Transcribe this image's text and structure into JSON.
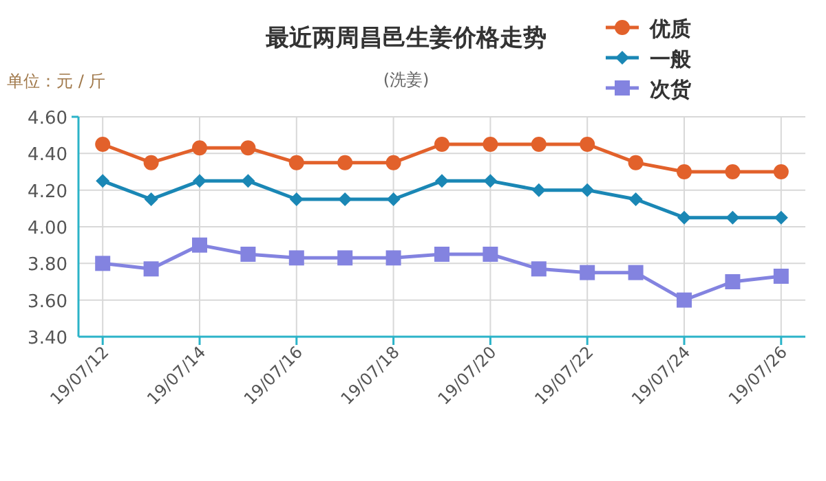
{
  "chart_data": {
    "type": "line",
    "title": "最近两周昌邑生姜价格走势",
    "subtitle": "(洗姜)",
    "ylabel": "单位：元 / 斤",
    "categories": [
      "19/07/12",
      null,
      "19/07/14",
      null,
      "19/07/16",
      null,
      "19/07/18",
      null,
      "19/07/20",
      null,
      "19/07/22",
      null,
      "19/07/24",
      null,
      "19/07/26"
    ],
    "series": [
      {
        "name": "优质",
        "color": "#e2612b",
        "marker": "circle",
        "values": [
          4.45,
          4.35,
          4.43,
          4.43,
          4.35,
          4.35,
          4.35,
          4.45,
          4.45,
          4.45,
          4.45,
          4.35,
          4.3,
          4.3,
          4.3
        ]
      },
      {
        "name": "一般",
        "color": "#1a87b5",
        "marker": "diamond",
        "values": [
          4.25,
          4.15,
          4.25,
          4.25,
          4.15,
          4.15,
          4.15,
          4.25,
          4.25,
          4.2,
          4.2,
          4.15,
          4.05,
          4.05,
          4.05
        ]
      },
      {
        "name": "次货",
        "color": "#8383e0",
        "marker": "square",
        "values": [
          3.8,
          3.77,
          3.9,
          3.85,
          3.83,
          3.83,
          3.83,
          3.85,
          3.85,
          3.77,
          3.75,
          3.75,
          3.6,
          3.7,
          3.73
        ]
      }
    ],
    "ylim": [
      3.4,
      4.6
    ],
    "yticks": [
      {
        "value": 3.4,
        "label": "3.40"
      },
      {
        "value": 3.6,
        "label": "3.60"
      },
      {
        "value": 3.8,
        "label": "3.80"
      },
      {
        "value": 4.0,
        "label": "4.00"
      },
      {
        "value": 4.2,
        "label": "4.20"
      },
      {
        "value": 4.4,
        "label": "4.40"
      },
      {
        "value": 4.6,
        "label": "4.60"
      }
    ],
    "grid": true,
    "legend": "top right"
  }
}
